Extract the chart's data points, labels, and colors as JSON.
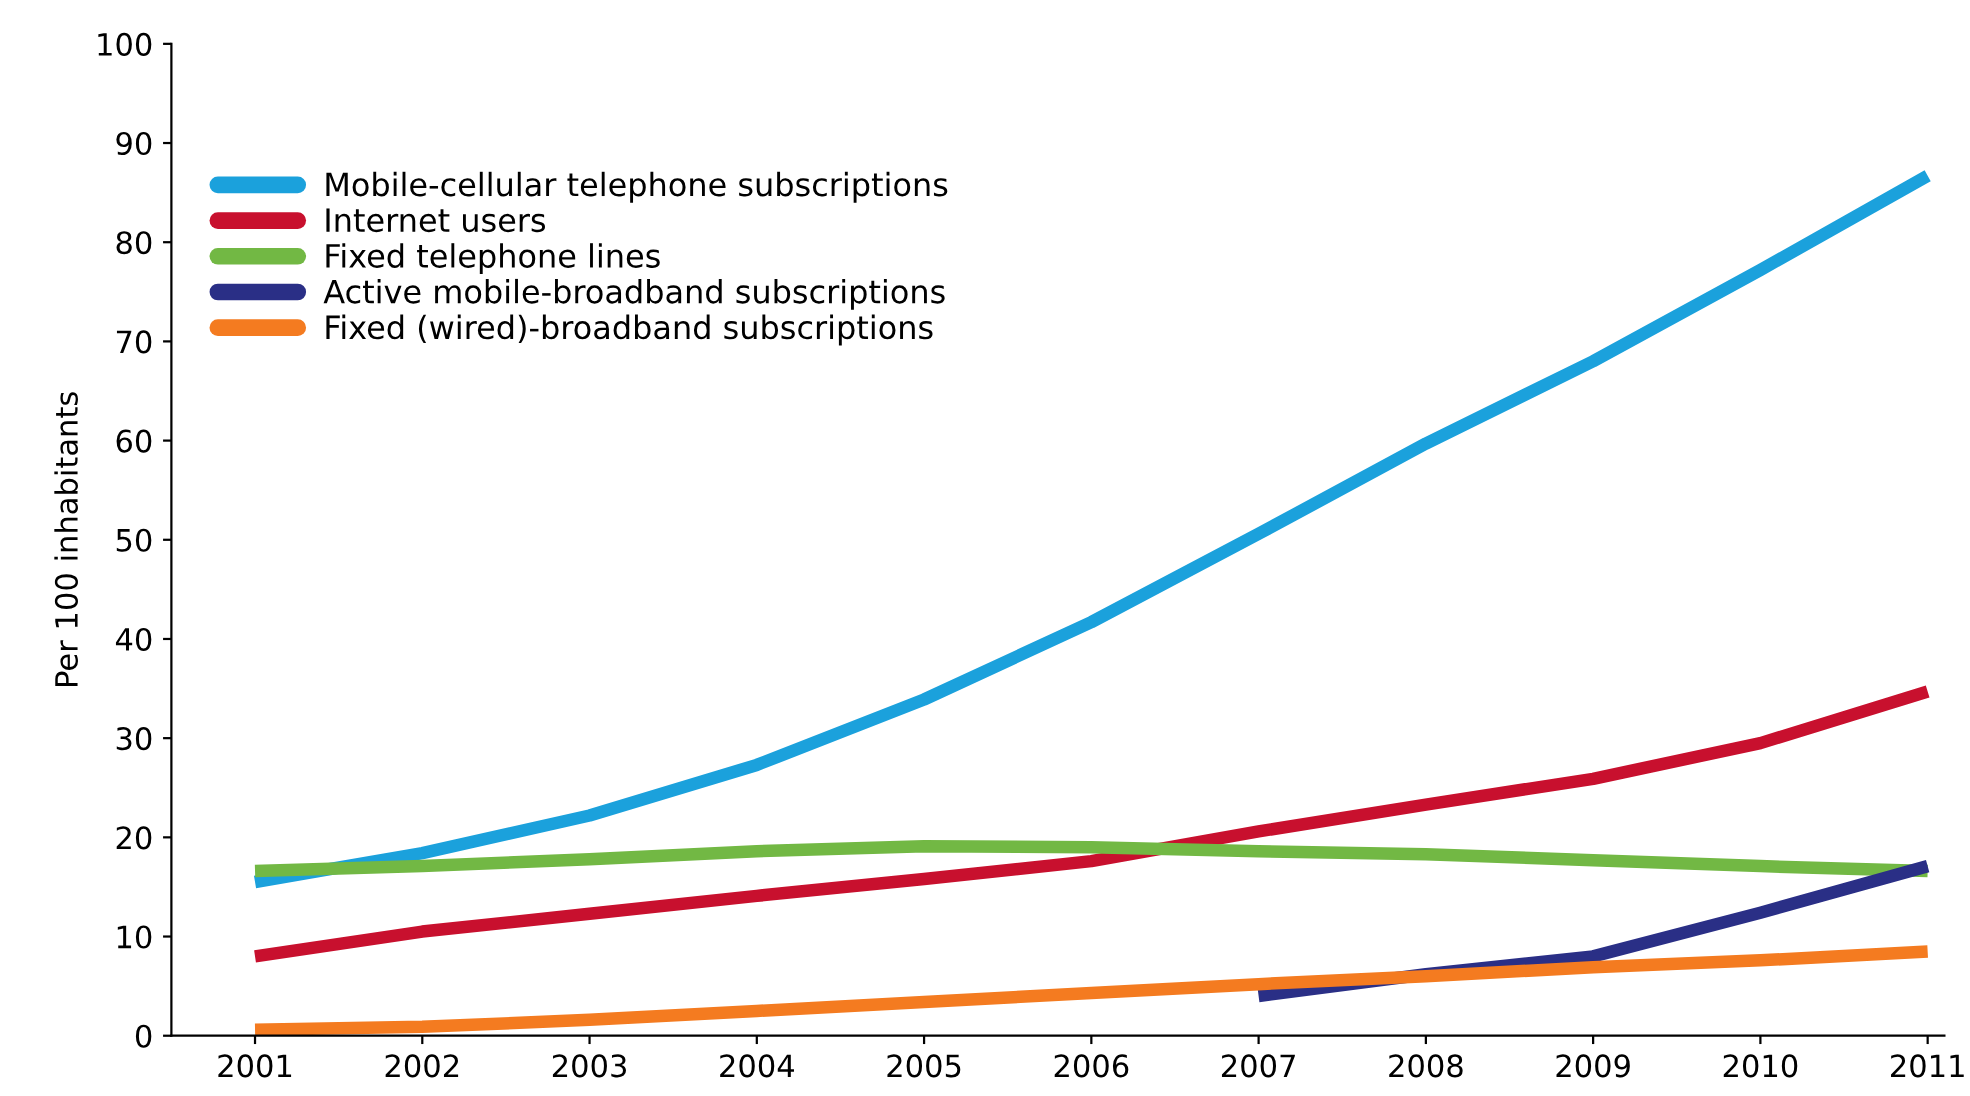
{
  "chart_data": {
    "type": "line",
    "ylabel": "Per 100 inhabitants",
    "x": [
      2001,
      2002,
      2003,
      2004,
      2005,
      2006,
      2007,
      2008,
      2009,
      2010,
      2011
    ],
    "series": [
      {
        "name": "Mobile-cellular telephone subscriptions",
        "color": "#1ba1dc",
        "values": [
          15.5,
          18.4,
          22.2,
          27.3,
          33.9,
          41.7,
          50.6,
          59.7,
          68.0,
          77.2,
          86.7
        ]
      },
      {
        "name": "Internet users",
        "color": "#c8102e",
        "values": [
          8.0,
          10.5,
          12.3,
          14.1,
          15.8,
          17.6,
          20.6,
          23.3,
          25.9,
          29.5,
          34.7
        ]
      },
      {
        "name": "Fixed telephone lines",
        "color": "#72b844",
        "values": [
          16.6,
          17.1,
          17.8,
          18.6,
          19.1,
          19.0,
          18.6,
          18.3,
          17.7,
          17.1,
          16.6
        ]
      },
      {
        "name": "Active mobile-broadband subscriptions",
        "color": "#2a2f86",
        "values": [
          null,
          null,
          null,
          null,
          null,
          null,
          4.0,
          6.2,
          8.0,
          12.4,
          17.1
        ]
      },
      {
        "name": "Fixed (wired)-broadband subscriptions",
        "color": "#f47b20",
        "values": [
          0.6,
          0.9,
          1.6,
          2.5,
          3.4,
          4.3,
          5.2,
          6.0,
          6.9,
          7.6,
          8.5
        ]
      }
    ],
    "xlim": [
      2000.5,
      2011.1
    ],
    "xticks": [
      2001,
      2002,
      2003,
      2004,
      2005,
      2006,
      2007,
      2008,
      2009,
      2010,
      2011
    ],
    "ylim": [
      0,
      100
    ],
    "yticks": [
      0,
      10,
      20,
      30,
      40,
      50,
      60,
      70,
      80,
      90,
      100
    ],
    "grid": false,
    "legend": "top left",
    "marker": "none",
    "line_style": "solid"
  }
}
